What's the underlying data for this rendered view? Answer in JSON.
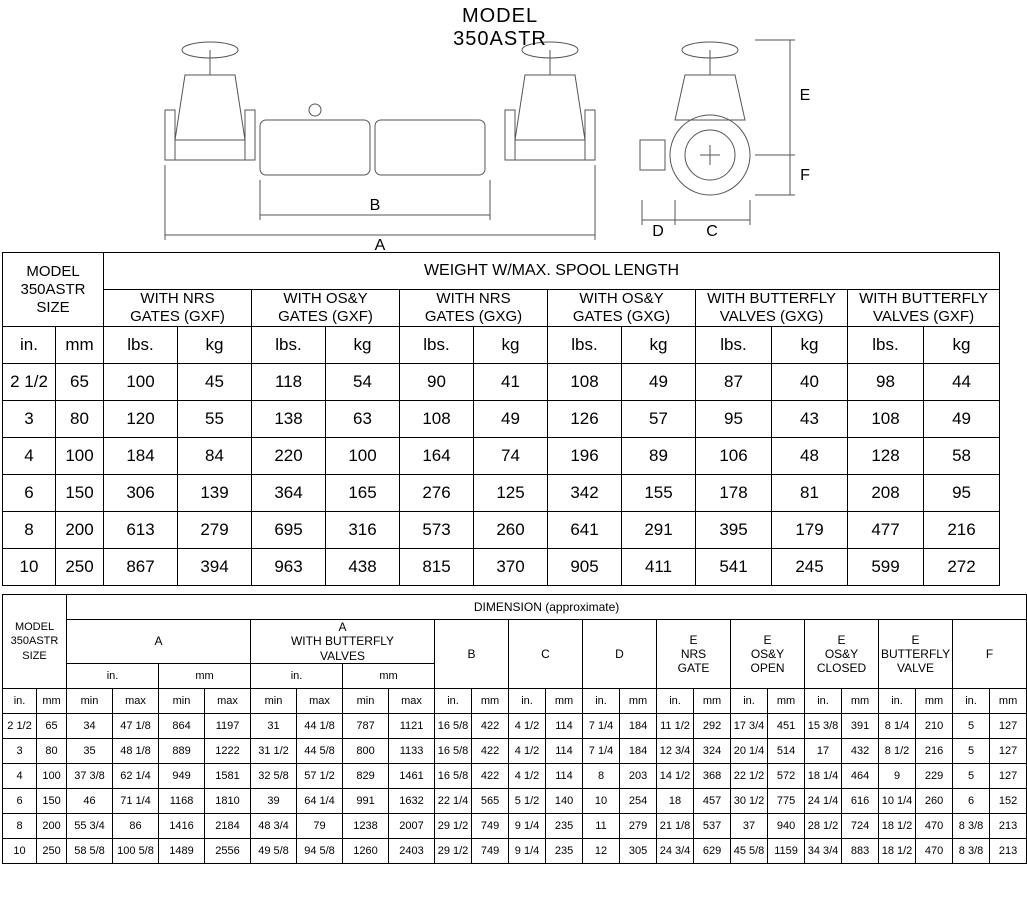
{
  "title": "MODEL\n350ASTR",
  "diagram_labels": {
    "A": "A",
    "B": "B",
    "C": "C",
    "D": "D",
    "E": "E",
    "F": "F"
  },
  "table1": {
    "model_label": "MODEL\n350ASTR\nSIZE",
    "top_header": "WEIGHT W/MAX. SPOOL LENGTH",
    "groups": [
      {
        "l1": "WITH NRS",
        "l2": "GATES (GXF)"
      },
      {
        "l1": "WITH OS&Y",
        "l2": "GATES (GXF)"
      },
      {
        "l1": "WITH NRS",
        "l2": "GATES (GXG)"
      },
      {
        "l1": "WITH OS&Y",
        "l2": "GATES (GXG)"
      },
      {
        "l1": "WITH BUTTERFLY",
        "l2": "VALVES (GXG)"
      },
      {
        "l1": "WITH BUTTERFLY",
        "l2": "VALVES (GXF)"
      }
    ],
    "units_size": [
      "in.",
      "mm"
    ],
    "units_wt": [
      "lbs.",
      "kg"
    ],
    "rows": [
      {
        "size_in": "2 1/2",
        "size_mm": "65",
        "c": [
          [
            "100",
            "45"
          ],
          [
            "118",
            "54"
          ],
          [
            "90",
            "41"
          ],
          [
            "108",
            "49"
          ],
          [
            "87",
            "40"
          ],
          [
            "98",
            "44"
          ]
        ]
      },
      {
        "size_in": "3",
        "size_mm": "80",
        "c": [
          [
            "120",
            "55"
          ],
          [
            "138",
            "63"
          ],
          [
            "108",
            "49"
          ],
          [
            "126",
            "57"
          ],
          [
            "95",
            "43"
          ],
          [
            "108",
            "49"
          ]
        ]
      },
      {
        "size_in": "4",
        "size_mm": "100",
        "c": [
          [
            "184",
            "84"
          ],
          [
            "220",
            "100"
          ],
          [
            "164",
            "74"
          ],
          [
            "196",
            "89"
          ],
          [
            "106",
            "48"
          ],
          [
            "128",
            "58"
          ]
        ]
      },
      {
        "size_in": "6",
        "size_mm": "150",
        "c": [
          [
            "306",
            "139"
          ],
          [
            "364",
            "165"
          ],
          [
            "276",
            "125"
          ],
          [
            "342",
            "155"
          ],
          [
            "178",
            "81"
          ],
          [
            "208",
            "95"
          ]
        ]
      },
      {
        "size_in": "8",
        "size_mm": "200",
        "c": [
          [
            "613",
            "279"
          ],
          [
            "695",
            "316"
          ],
          [
            "573",
            "260"
          ],
          [
            "641",
            "291"
          ],
          [
            "395",
            "179"
          ],
          [
            "477",
            "216"
          ]
        ]
      },
      {
        "size_in": "10",
        "size_mm": "250",
        "c": [
          [
            "867",
            "394"
          ],
          [
            "963",
            "438"
          ],
          [
            "815",
            "370"
          ],
          [
            "905",
            "411"
          ],
          [
            "541",
            "245"
          ],
          [
            "599",
            "272"
          ]
        ]
      }
    ]
  },
  "table2": {
    "model_label": "MODEL\n350ASTR\nSIZE",
    "top_header": "DIMENSION (approximate)",
    "groups": [
      {
        "label": "A",
        "subcols": [
          {
            "u": "in.",
            "mm": [
              "min",
              "max"
            ]
          },
          {
            "u": "mm",
            "mm": [
              "min",
              "max"
            ]
          }
        ]
      },
      {
        "label": "A\nWITH BUTTERFLY\nVALVES",
        "subcols": [
          {
            "u": "in.",
            "mm": [
              "min",
              "max"
            ]
          },
          {
            "u": "mm",
            "mm": [
              "min",
              "max"
            ]
          }
        ]
      },
      {
        "label": "B",
        "subcols": [
          {
            "u": "in.",
            "one": true
          },
          {
            "u": "mm",
            "one": true
          }
        ]
      },
      {
        "label": "C",
        "subcols": [
          {
            "u": "in.",
            "one": true
          },
          {
            "u": "mm",
            "one": true
          }
        ]
      },
      {
        "label": "D",
        "subcols": [
          {
            "u": "in.",
            "one": true
          },
          {
            "u": "mm",
            "one": true
          }
        ]
      },
      {
        "label": "E\nNRS\nGATE",
        "subcols": [
          {
            "u": "in.",
            "one": true
          },
          {
            "u": "mm",
            "one": true
          }
        ]
      },
      {
        "label": "E\nOS&Y\nOPEN",
        "subcols": [
          {
            "u": "in.",
            "one": true
          },
          {
            "u": "mm",
            "one": true
          }
        ]
      },
      {
        "label": "E\nOS&Y\nCLOSED",
        "subcols": [
          {
            "u": "in.",
            "one": true
          },
          {
            "u": "mm",
            "one": true
          }
        ]
      },
      {
        "label": "E\nBUTTERFLY\nVALVE",
        "subcols": [
          {
            "u": "in.",
            "one": true
          },
          {
            "u": "mm",
            "one": true
          }
        ]
      },
      {
        "label": "F",
        "subcols": [
          {
            "u": "in.",
            "one": true
          },
          {
            "u": "mm",
            "one": true
          }
        ]
      }
    ],
    "rows": [
      {
        "s": [
          "2 1/2",
          "65"
        ],
        "v": [
          "34",
          "47 1/8",
          "864",
          "1197",
          "31",
          "44 1/8",
          "787",
          "1121",
          "16 5/8",
          "422",
          "4 1/2",
          "114",
          "7 1/4",
          "184",
          "11 1/2",
          "292",
          "17 3/4",
          "451",
          "15 3/8",
          "391",
          "8 1/4",
          "210",
          "5",
          "127"
        ]
      },
      {
        "s": [
          "3",
          "80"
        ],
        "v": [
          "35",
          "48 1/8",
          "889",
          "1222",
          "31 1/2",
          "44 5/8",
          "800",
          "1133",
          "16 5/8",
          "422",
          "4 1/2",
          "114",
          "7 1/4",
          "184",
          "12 3/4",
          "324",
          "20 1/4",
          "514",
          "17",
          "432",
          "8 1/2",
          "216",
          "5",
          "127"
        ]
      },
      {
        "s": [
          "4",
          "100"
        ],
        "v": [
          "37 3/8",
          "62 1/4",
          "949",
          "1581",
          "32 5/8",
          "57 1/2",
          "829",
          "1461",
          "16 5/8",
          "422",
          "4 1/2",
          "114",
          "8",
          "203",
          "14 1/2",
          "368",
          "22 1/2",
          "572",
          "18 1/4",
          "464",
          "9",
          "229",
          "5",
          "127"
        ]
      },
      {
        "s": [
          "6",
          "150"
        ],
        "v": [
          "46",
          "71 1/4",
          "1168",
          "1810",
          "39",
          "64 1/4",
          "991",
          "1632",
          "22 1/4",
          "565",
          "5 1/2",
          "140",
          "10",
          "254",
          "18",
          "457",
          "30 1/2",
          "775",
          "24 1/4",
          "616",
          "10 1/4",
          "260",
          "6",
          "152"
        ]
      },
      {
        "s": [
          "8",
          "200"
        ],
        "v": [
          "55 3/4",
          "86",
          "1416",
          "2184",
          "48 3/4",
          "79",
          "1238",
          "2007",
          "29 1/2",
          "749",
          "9 1/4",
          "235",
          "11",
          "279",
          "21 1/8",
          "537",
          "37",
          "940",
          "28 1/2",
          "724",
          "18 1/2",
          "470",
          "8 3/8",
          "213"
        ]
      },
      {
        "s": [
          "10",
          "250"
        ],
        "v": [
          "58 5/8",
          "100 5/8",
          "1489",
          "2556",
          "49 5/8",
          "94 5/8",
          "1260",
          "2403",
          "29 1/2",
          "749",
          "9 1/4",
          "235",
          "12",
          "305",
          "24 3/4",
          "629",
          "45 5/8",
          "1159",
          "34 3/4",
          "883",
          "18 1/2",
          "470",
          "8 3/8",
          "213"
        ]
      }
    ]
  }
}
